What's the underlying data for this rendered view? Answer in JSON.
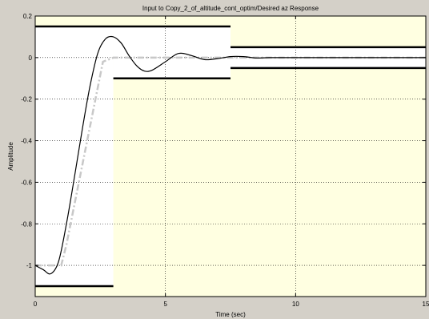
{
  "window": {
    "background": "#d4d0c8"
  },
  "chart_data": {
    "type": "line",
    "title": "Input to Copy_2_of_altitude_cont_optim/Desired az Response",
    "xlabel": "Time (sec)",
    "ylabel": "Amplitude",
    "xlim": [
      0,
      15
    ],
    "ylim": [
      -1.15,
      0.2
    ],
    "x_ticks": [
      0,
      5,
      10,
      15
    ],
    "x_tick_labels": [
      "0",
      "5",
      "10",
      "15"
    ],
    "y_ticks": [
      0.2,
      0,
      -0.2,
      -0.4,
      -0.6,
      -0.8,
      -1
    ],
    "y_tick_labels": [
      "0.2",
      "0",
      "-0.2",
      "-0.4",
      "-0.6",
      "-0.8",
      "-1"
    ],
    "grid": true,
    "colors": {
      "constraint_region": "#ffffe1",
      "allowed_region": "#ffffff",
      "response": "#000000",
      "reference": "#c8c8c8",
      "constraint_line": "#000000"
    },
    "constraint_regions": [
      {
        "x": [
          0,
          3
        ],
        "y": [
          -1.15,
          0.2
        ],
        "values_top": 0.15,
        "values_bottom": -1.1
      },
      {
        "x": [
          3,
          7.5
        ],
        "y": [
          -1.15,
          0.2
        ],
        "values_top": 0.15,
        "values_bottom": -0.1
      },
      {
        "x": [
          7.5,
          15
        ],
        "y": [
          -1.15,
          0.2
        ],
        "values_top": 0.05,
        "values_bottom": -0.05
      }
    ],
    "constraint_bounds": [
      {
        "x": [
          0,
          7.5
        ],
        "y": 0.15
      },
      {
        "x": [
          0,
          3
        ],
        "y": -1.1
      },
      {
        "x": [
          3,
          7.5
        ],
        "y": -0.1
      },
      {
        "x": [
          7.5,
          15
        ],
        "y": 0.05
      },
      {
        "x": [
          7.5,
          15
        ],
        "y": -0.05
      }
    ],
    "series": [
      {
        "style": "solid",
        "x": [
          0,
          0.3,
          0.6,
          0.9,
          1.2,
          1.5,
          1.8,
          2.1,
          2.4,
          2.7,
          3.0,
          3.3,
          3.6,
          3.9,
          4.2,
          4.5,
          5.0,
          5.5,
          6.0,
          6.5,
          7.0,
          7.5,
          8.0,
          8.5,
          9.0,
          10.0,
          11.0,
          12.0,
          15.0
        ],
        "values": [
          -1.0,
          -1.02,
          -1.04,
          -0.98,
          -0.8,
          -0.58,
          -0.35,
          -0.14,
          0.02,
          0.09,
          0.1,
          0.07,
          0.01,
          -0.04,
          -0.065,
          -0.06,
          -0.02,
          0.02,
          0.01,
          -0.01,
          -0.005,
          0.005,
          0.005,
          -0.002,
          0.0,
          0.0,
          0.0,
          0.0,
          0.0
        ]
      },
      {
        "style": "dash-dot",
        "x": [
          0,
          1.0,
          1.2,
          2.6,
          3.0,
          15
        ],
        "values": [
          -1.0,
          -1.0,
          -0.9,
          -0.02,
          0.0,
          0.0
        ]
      }
    ]
  }
}
